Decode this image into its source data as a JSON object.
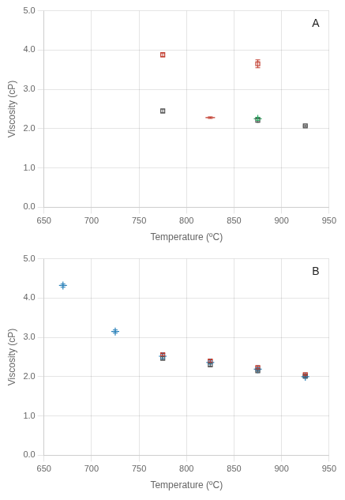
{
  "chart_data": [
    {
      "type": "scatter",
      "annotation": "A",
      "xlabel": "Temperature (ºC)",
      "ylabel": "Viscosity (cP)",
      "xlim": [
        650,
        950
      ],
      "ylim": [
        0.0,
        5.0
      ],
      "xticks": [
        650,
        700,
        750,
        800,
        850,
        900,
        950
      ],
      "yticks": [
        {
          "value": 0.0,
          "label": "0.0"
        },
        {
          "value": 1.0,
          "label": "1.0"
        },
        {
          "value": 2.0,
          "label": "2.0"
        },
        {
          "value": 3.0,
          "label": "3.0"
        },
        {
          "value": 4.0,
          "label": "4.0"
        },
        {
          "value": 5.0,
          "label": "5.0"
        }
      ],
      "grid": true,
      "series": [
        {
          "color": "#c0392b",
          "marker": "square",
          "x": [
            775,
            875
          ],
          "values": [
            3.88,
            3.65
          ],
          "yerr": [
            0.05,
            0.1
          ]
        },
        {
          "color": "#555555",
          "marker": "square",
          "x": [
            775,
            875,
            925
          ],
          "values": [
            2.45,
            2.22,
            2.07
          ],
          "yerr": [
            0.05,
            0.06,
            0.02
          ]
        },
        {
          "color": "#c0392b",
          "marker": "hline",
          "x": [
            825
          ],
          "values": [
            2.28
          ],
          "yerr": [
            0.02
          ]
        },
        {
          "color": "#27ae60",
          "marker": "plus",
          "x": [
            875
          ],
          "values": [
            2.25
          ],
          "yerr": [
            0.04
          ]
        }
      ]
    },
    {
      "type": "scatter",
      "annotation": "B",
      "xlabel": "Temperature (ºC)",
      "ylabel": "Viscosity (cP)",
      "xlim": [
        650,
        950
      ],
      "ylim": [
        0.0,
        5.0
      ],
      "xticks": [
        650,
        700,
        750,
        800,
        850,
        900,
        950
      ],
      "yticks": [
        {
          "value": 0.0,
          "label": "0.0"
        },
        {
          "value": 1.0,
          "label": "1.0"
        },
        {
          "value": 2.0,
          "label": "2.0"
        },
        {
          "value": 3.0,
          "label": "3.0"
        },
        {
          "value": 4.0,
          "label": "4.0"
        },
        {
          "value": 5.0,
          "label": "5.0"
        }
      ],
      "grid": true,
      "series": [
        {
          "color": "#2980b9",
          "marker": "plus",
          "x": [
            670,
            725,
            775,
            825,
            875,
            925
          ],
          "values": [
            4.32,
            3.15,
            2.52,
            2.36,
            2.19,
            2.0
          ],
          "yerr": [
            0.04,
            0.04,
            0.06,
            0.04,
            0.04,
            0.03
          ]
        },
        {
          "color": "#555555",
          "marker": "square",
          "x": [
            775,
            825,
            875,
            925
          ],
          "values": [
            2.47,
            2.3,
            2.15,
            2.01
          ],
          "yerr": [
            0.05,
            0.04,
            0.03,
            0.03
          ]
        },
        {
          "color": "#c0392b",
          "marker": "square",
          "x": [
            775,
            825,
            875,
            925
          ],
          "values": [
            2.56,
            2.4,
            2.23,
            2.05
          ],
          "yerr": [
            0.03,
            0.03,
            0.03,
            0.02
          ]
        }
      ]
    }
  ]
}
